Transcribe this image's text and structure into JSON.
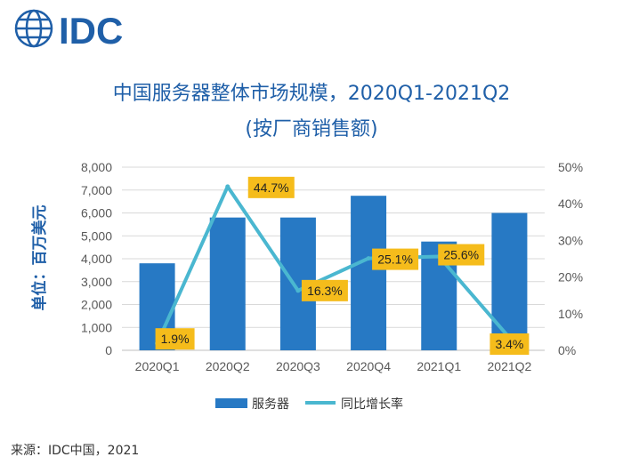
{
  "logo": {
    "text": "IDC",
    "color": "#1f5fa8"
  },
  "source": "来源：IDC中国，2021",
  "colors": {
    "bar": "#2779c4",
    "line": "#4ab7d0",
    "label_bg": "#f5bc1b",
    "title": "#1f5fa8"
  },
  "chart_data": {
    "type": "bar",
    "title": "中国服务器整体市场规模，2020Q1-2021Q2",
    "subtitle": "(按厂商销售额)",
    "ylabel": "单位：百万美元",
    "categories": [
      "2020Q1",
      "2020Q2",
      "2020Q3",
      "2020Q4",
      "2021Q1",
      "2021Q2"
    ],
    "series": [
      {
        "name": "服务器",
        "kind": "bar",
        "axis": "left",
        "values": [
          3800,
          5800,
          5800,
          6750,
          4750,
          6000
        ]
      },
      {
        "name": "同比增长率",
        "kind": "line",
        "axis": "right",
        "values": [
          1.9,
          44.7,
          16.3,
          25.1,
          25.6,
          3.4
        ],
        "labels": [
          "1.9%",
          "44.7%",
          "16.3%",
          "25.1%",
          "25.6%",
          "3.4%"
        ]
      }
    ],
    "ylim": [
      0,
      8000
    ],
    "yticks": [
      0,
      1000,
      2000,
      3000,
      4000,
      5000,
      6000,
      7000,
      8000
    ],
    "ytick_labels": [
      "0",
      "1,000",
      "2,000",
      "3,000",
      "4,000",
      "5,000",
      "6,000",
      "7,000",
      "8,000"
    ],
    "y2lim": [
      0,
      50
    ],
    "y2ticks": [
      0,
      10,
      20,
      30,
      40,
      50
    ],
    "y2tick_labels": [
      "0%",
      "10%",
      "20%",
      "30%",
      "40%",
      "50%"
    ],
    "grid": true,
    "legend": "bottom"
  }
}
